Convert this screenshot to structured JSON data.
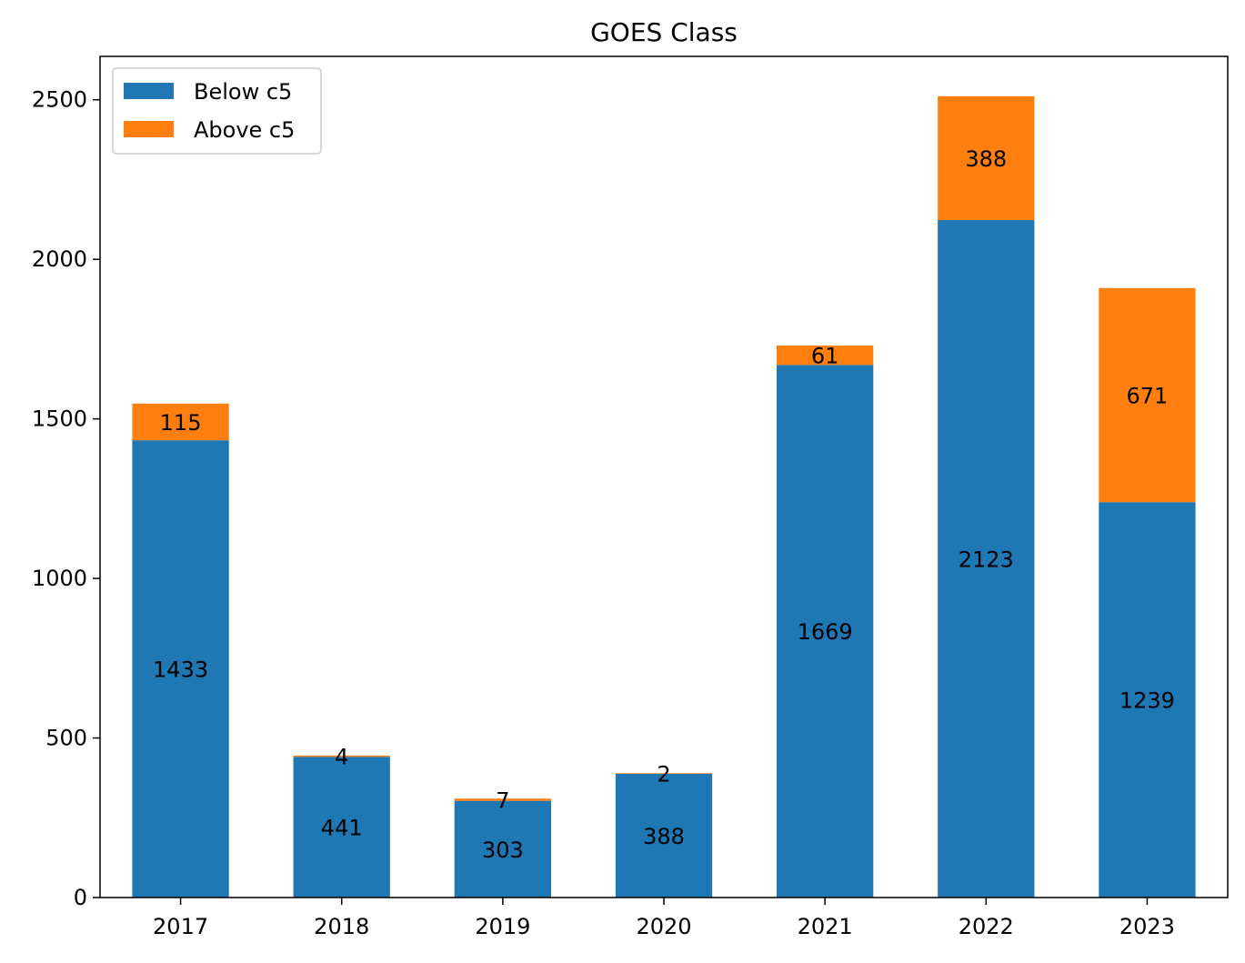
{
  "chart_data": {
    "type": "bar",
    "stacked": true,
    "title": "GOES Class",
    "xlabel": "",
    "ylabel": "",
    "categories": [
      "2017",
      "2018",
      "2019",
      "2020",
      "2021",
      "2022",
      "2023"
    ],
    "series": [
      {
        "name": "Below c5",
        "color": "#1f77b4",
        "values": [
          1433,
          441,
          303,
          388,
          1669,
          2123,
          1239
        ]
      },
      {
        "name": "Above c5",
        "color": "#ff7f0e",
        "values": [
          115,
          4,
          7,
          2,
          61,
          388,
          671
        ]
      }
    ],
    "ylim": [
      0,
      2636
    ],
    "yticks": [
      0,
      500,
      1000,
      1500,
      2000,
      2500
    ],
    "grid": false,
    "legend_position": "upper-left"
  }
}
